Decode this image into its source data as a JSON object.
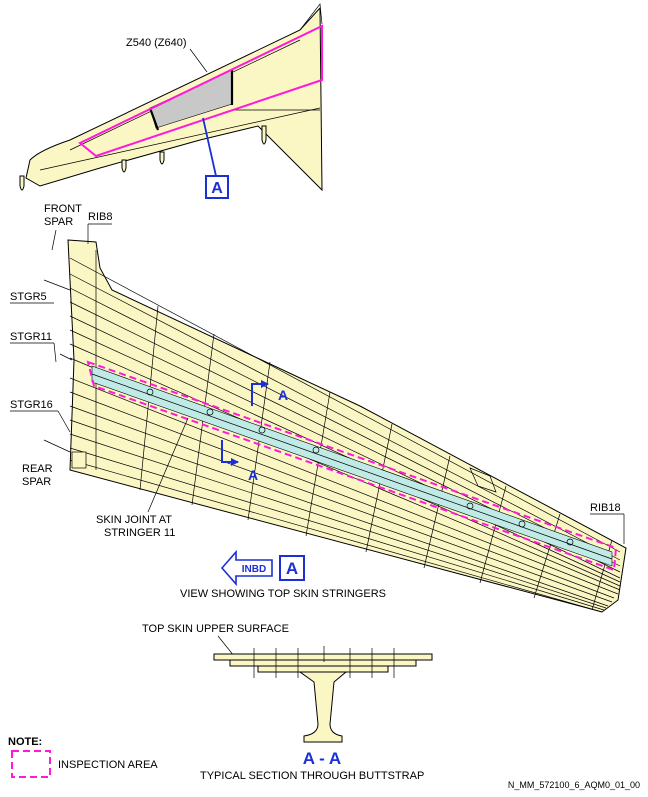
{
  "labels": {
    "zone": "Z540 (Z640)",
    "view_marker": "A",
    "front_spar": [
      "FRONT",
      "SPAR"
    ],
    "rib8": "RIB8",
    "stgr5": "STGR5",
    "stgr11": "STGR11",
    "stgr16": "STGR16",
    "rear_spar": [
      "REAR",
      "SPAR"
    ],
    "skin_joint": [
      "SKIN JOINT AT",
      "STRINGER 11"
    ],
    "rib18": "RIB18",
    "inbd": "INBD",
    "view_caption": "VIEW SHOWING TOP SKIN STRINGERS",
    "section_marker_top": "A",
    "section_marker_bottom": "A",
    "top_skin_label": "TOP SKIN UPPER SURFACE",
    "section_title": "A - A",
    "section_caption": "TYPICAL SECTION THROUGH BUTTSTRAP",
    "note_title": "NOTE:",
    "note_legend": "INSPECTION AREA",
    "drawing_id": "N_MM_572100_6_AQM0_01_00"
  },
  "colors": {
    "skin_fill": "#fbf7c4",
    "inspection": "#ff1ad9",
    "callout_blue": "#1a2fd6",
    "joint_fill": "#bfeae6",
    "zone_grey": "#c8c8c8"
  }
}
